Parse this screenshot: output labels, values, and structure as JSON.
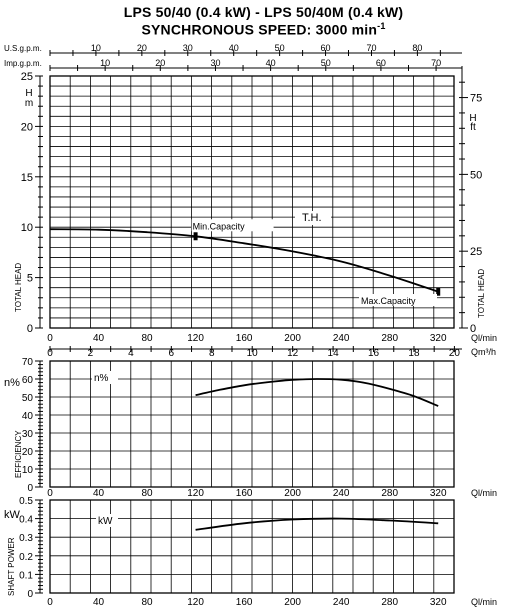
{
  "header": {
    "title_line1": "LPS 50/40 (0.4 kW) - LPS 50/40M (0.4 kW)",
    "title_line2": "SYNCHRONOUS SPEED: 3000 min",
    "title_line2_sup": "-1"
  },
  "chart_data": [
    {
      "id": "head",
      "type": "line",
      "top_axes": [
        {
          "label": "U.S.g.p.m.",
          "ticks": [
            "10",
            "20",
            "30",
            "40",
            "50",
            "60",
            "70",
            "80"
          ]
        },
        {
          "label": "Imp.g.p.m.",
          "ticks": [
            "10",
            "20",
            "30",
            "40",
            "50",
            "60",
            "70"
          ]
        }
      ],
      "xlabel_bottom": [
        "Ql/min",
        "Qm³/h"
      ],
      "x_ticks_lmin": [
        "0",
        "40",
        "80",
        "120",
        "160",
        "200",
        "240",
        "280",
        "320"
      ],
      "x_ticks_m3h": [
        "0",
        "2",
        "4",
        "6",
        "8",
        "10",
        "12",
        "14",
        "16",
        "18",
        "20"
      ],
      "xlim": [
        0,
        333
      ],
      "left_unit": "H\nm",
      "ylim": [
        0,
        25
      ],
      "y_ticks": [
        "0",
        "5",
        "10",
        "15",
        "20",
        "25"
      ],
      "right_unit": "H\nft",
      "right_ticks": [
        "0",
        "25",
        "50",
        "75"
      ],
      "ylabel": "TOTAL HEAD",
      "ylabel_right": "TOTAL HEAD",
      "annotations": [
        "Min.Capacity",
        "Max.Capacity",
        "T.H."
      ],
      "series": [
        {
          "x": [
            0,
            40,
            80,
            120,
            160,
            200,
            240,
            280,
            320
          ],
          "y": [
            9.8,
            9.75,
            9.5,
            9.1,
            8.4,
            7.6,
            6.6,
            5.2,
            3.6
          ]
        }
      ],
      "markers": [
        {
          "x": 120,
          "y": 9.1
        },
        {
          "x": 320,
          "y": 3.6
        }
      ],
      "grid": true
    },
    {
      "id": "efficiency",
      "type": "line",
      "left_unit": "n%",
      "ylim": [
        0,
        70
      ],
      "y_ticks": [
        "0",
        "10",
        "20",
        "30",
        "40",
        "50",
        "60",
        "70"
      ],
      "ylabel": "EFFICIENCY",
      "xlabel": "Ql/min",
      "x_ticks": [
        "0",
        "40",
        "80",
        "120",
        "160",
        "200",
        "240",
        "280",
        "320"
      ],
      "xlim": [
        0,
        333
      ],
      "annotation": "n%",
      "series": [
        {
          "x": [
            120,
            140,
            160,
            180,
            200,
            220,
            240,
            260,
            280,
            300,
            320
          ],
          "y": [
            51,
            54,
            56.5,
            58.3,
            59.5,
            60,
            59.6,
            57.8,
            54.5,
            50.5,
            45
          ]
        }
      ],
      "grid": true
    },
    {
      "id": "power",
      "type": "line",
      "left_unit": "kW",
      "ylim": [
        0,
        0.5
      ],
      "y_ticks": [
        "0",
        "0.1",
        "0.2",
        "0.3",
        "0.4",
        "0.5"
      ],
      "ylabel": "SHAFT POWER",
      "xlabel": "Ql/min",
      "x_ticks": [
        "0",
        "40",
        "80",
        "120",
        "160",
        "200",
        "240",
        "280",
        "320"
      ],
      "xlim": [
        0,
        333
      ],
      "annotation": "kW",
      "series": [
        {
          "x": [
            120,
            160,
            200,
            240,
            280,
            320
          ],
          "y": [
            0.34,
            0.375,
            0.395,
            0.4,
            0.39,
            0.375
          ]
        }
      ],
      "grid": true
    }
  ]
}
